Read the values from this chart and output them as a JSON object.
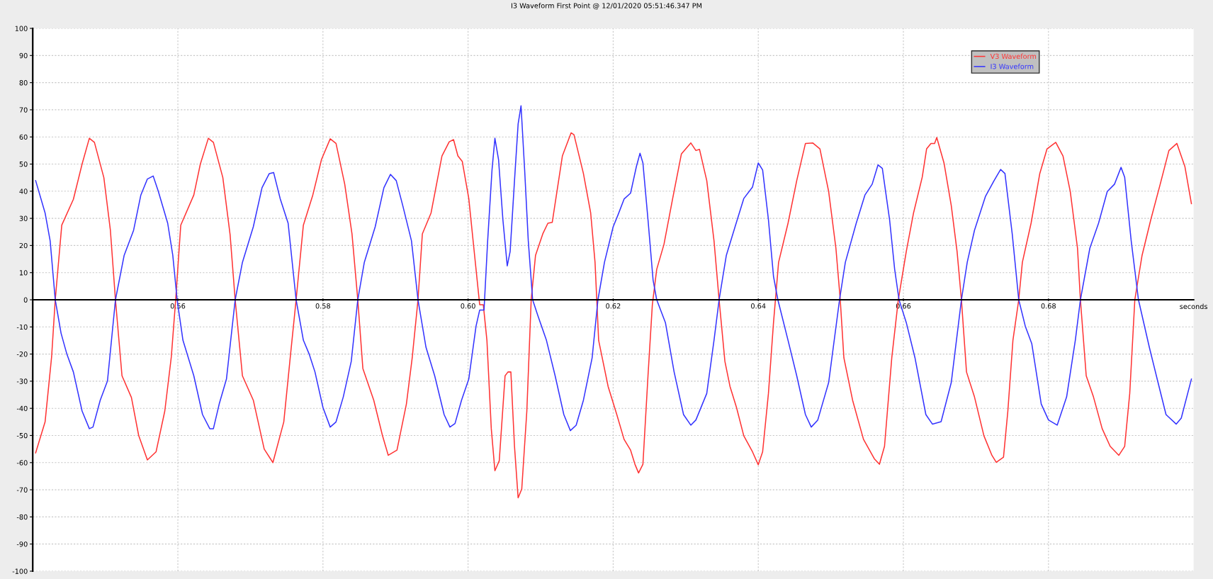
{
  "chart_data": {
    "type": "line",
    "title": "I3 Waveform First Point @ 12/01/2020 05:51:46.347 PM",
    "xlabel": "seconds",
    "xlim": [
      0.54,
      0.7
    ],
    "ylim": [
      -100,
      100
    ],
    "xticks": [
      0.56,
      0.58,
      {
        "value": 0.6,
        "label": "0.60"
      },
      0.62,
      0.64,
      0.66,
      0.68
    ],
    "yticks": [
      -100,
      -90,
      -80,
      -70,
      -60,
      -50,
      -40,
      -30,
      -20,
      -10,
      0,
      10,
      20,
      30,
      40,
      50,
      60,
      70,
      80,
      90,
      100
    ],
    "grid": true,
    "legend": "top right",
    "series": [
      {
        "name": "V3 Waveform",
        "color": "#ff3333",
        "x": [
          0.5404,
          0.5417,
          0.5426,
          0.5431,
          0.544,
          0.5456,
          0.5468,
          0.5478,
          0.5485,
          0.5498,
          0.5507,
          0.5514,
          0.5523,
          0.5536,
          0.5546,
          0.5558,
          0.557,
          0.5582,
          0.5591,
          0.5597,
          0.5604,
          0.5622,
          0.5631,
          0.5642,
          0.5649,
          0.5662,
          0.5672,
          0.5679,
          0.5689,
          0.5704,
          0.5719,
          0.5731,
          0.5746,
          0.5755,
          0.5763,
          0.5773,
          0.5786,
          0.5798,
          0.581,
          0.5818,
          0.583,
          0.584,
          0.5848,
          0.5855,
          0.587,
          0.5882,
          0.589,
          0.5902,
          0.5915,
          0.5923,
          0.5931,
          0.5937,
          0.5949,
          0.5964,
          0.5974,
          0.598,
          0.5986,
          0.5992,
          0.6001,
          0.6008,
          0.6016,
          0.6021,
          0.6026,
          0.6032,
          0.6037,
          0.6043,
          0.6051,
          0.6055,
          0.6059,
          0.6064,
          0.6069,
          0.6074,
          0.6081,
          0.6087,
          0.6093,
          0.6103,
          0.611,
          0.6116,
          0.613,
          0.6142,
          0.6146,
          0.6159,
          0.6169,
          0.6175,
          0.618,
          0.6193,
          0.6205,
          0.6215,
          0.6224,
          0.623,
          0.6235,
          0.6241,
          0.6248,
          0.6254,
          0.626,
          0.627,
          0.6282,
          0.6294,
          0.6307,
          0.6314,
          0.6319,
          0.6329,
          0.6339,
          0.6346,
          0.6354,
          0.6361,
          0.637,
          0.638,
          0.6392,
          0.64,
          0.6406,
          0.6414,
          0.6421,
          0.6428,
          0.6441,
          0.6453,
          0.6465,
          0.6475,
          0.6485,
          0.6497,
          0.6507,
          0.6513,
          0.6518,
          0.653,
          0.6545,
          0.656,
          0.6567,
          0.6574,
          0.6584,
          0.6593,
          0.6604,
          0.6614,
          0.6626,
          0.6632,
          0.6638,
          0.6643,
          0.6646,
          0.6656,
          0.6666,
          0.6674,
          0.668,
          0.6687,
          0.6698,
          0.6711,
          0.6722,
          0.6728,
          0.6738,
          0.6744,
          0.6751,
          0.6759,
          0.6764,
          0.6776,
          0.6788,
          0.6798,
          0.681,
          0.682,
          0.683,
          0.684,
          0.6844,
          0.6852,
          0.6862,
          0.6874,
          0.6885,
          0.6897,
          0.6905,
          0.6912,
          0.6919,
          0.6929,
          0.6941,
          0.6954,
          0.6966,
          0.6977,
          0.6988,
          0.6997
        ],
        "values": [
          -56.4,
          -45,
          -21,
          0,
          27.5,
          37,
          50,
          59.5,
          58,
          45,
          25.6,
          0,
          -28,
          -36,
          -50,
          -59,
          -56,
          -41,
          -21,
          0,
          27.5,
          38.6,
          50,
          59.5,
          58,
          45,
          24,
          0,
          -28,
          -37,
          -55,
          -60,
          -45,
          -21,
          0,
          27.5,
          38.6,
          51.7,
          59.3,
          57.6,
          42.6,
          24.3,
          0,
          -25.3,
          -37,
          -50,
          -57.3,
          -55.4,
          -38.4,
          -21.4,
          0,
          24.3,
          32,
          53,
          58.2,
          59,
          53,
          51,
          37.3,
          19,
          -1.8,
          -1.8,
          -15,
          -47.5,
          -63,
          -59.3,
          -28,
          -26.6,
          -26.6,
          -54,
          -73,
          -69.7,
          -41,
          0,
          16.4,
          24.3,
          28.2,
          28.5,
          53,
          61.5,
          60.8,
          46.5,
          32,
          13.8,
          -15,
          -31.9,
          -42.3,
          -51.4,
          -55.4,
          -60.6,
          -63.8,
          -60.6,
          -28,
          -1.8,
          11.2,
          20.4,
          37.3,
          53.7,
          57.8,
          55,
          55.4,
          43.9,
          21.7,
          0,
          -22.7,
          -31.9,
          -39.7,
          -50.1,
          -56,
          -60.8,
          -56,
          -34.5,
          -8.4,
          13.8,
          28.2,
          43.9,
          57.6,
          57.8,
          55.6,
          39.9,
          19,
          0,
          -21.4,
          -37,
          -51.4,
          -58.6,
          -60.6,
          -54,
          -21.4,
          0,
          17.8,
          32,
          45.2,
          55.6,
          57.6,
          57.6,
          59.8,
          50.4,
          34.7,
          17.8,
          0,
          -26.6,
          -35.8,
          -50.1,
          -57.3,
          -59.9,
          -58,
          -41,
          -14.9,
          0,
          13.8,
          28.2,
          46.5,
          55.6,
          58,
          53,
          39.9,
          19,
          0,
          -28,
          -35.8,
          -47.5,
          -54,
          -57.3,
          -54,
          -34.5,
          0,
          16.4,
          29.5,
          42.6,
          55,
          57.6,
          49.1,
          35.4
        ]
      },
      {
        "name": "I3 Waveform",
        "color": "#3333ff",
        "x": [
          0.5404,
          0.5417,
          0.5424,
          0.5431,
          0.5439,
          0.5447,
          0.5456,
          0.5468,
          0.5478,
          0.5483,
          0.5493,
          0.5503,
          0.5514,
          0.5526,
          0.5539,
          0.5549,
          0.5558,
          0.5566,
          0.5573,
          0.5586,
          0.5593,
          0.5599,
          0.5607,
          0.5622,
          0.5634,
          0.5644,
          0.5649,
          0.5657,
          0.5667,
          0.5679,
          0.5689,
          0.5704,
          0.5716,
          0.5726,
          0.5732,
          0.5741,
          0.5752,
          0.5763,
          0.5773,
          0.5781,
          0.5789,
          0.58,
          0.581,
          0.5818,
          0.5828,
          0.5839,
          0.5848,
          0.5857,
          0.5872,
          0.5884,
          0.5893,
          0.5901,
          0.591,
          0.5922,
          0.5931,
          0.5942,
          0.5954,
          0.5967,
          0.5975,
          0.5982,
          0.5991,
          0.6001,
          0.6011,
          0.6016,
          0.6022,
          0.6027,
          0.6033,
          0.6037,
          0.6042,
          0.6048,
          0.6054,
          0.6058,
          0.6064,
          0.6069,
          0.6073,
          0.6078,
          0.6083,
          0.6089,
          0.6096,
          0.6108,
          0.612,
          0.6132,
          0.6141,
          0.6149,
          0.6159,
          0.6171,
          0.6179,
          0.6188,
          0.62,
          0.6207,
          0.6215,
          0.6224,
          0.6232,
          0.6237,
          0.6241,
          0.6248,
          0.6255,
          0.626,
          0.6272,
          0.6284,
          0.6297,
          0.6307,
          0.6314,
          0.6329,
          0.6339,
          0.6346,
          0.6356,
          0.6368,
          0.638,
          0.6392,
          0.64,
          0.6406,
          0.6414,
          0.6421,
          0.6427,
          0.6441,
          0.6453,
          0.6465,
          0.6473,
          0.6482,
          0.6497,
          0.6512,
          0.652,
          0.6535,
          0.6547,
          0.6557,
          0.6565,
          0.6571,
          0.6581,
          0.6588,
          0.6594,
          0.6604,
          0.6616,
          0.6631,
          0.664,
          0.6652,
          0.6666,
          0.668,
          0.6688,
          0.6698,
          0.6713,
          0.6725,
          0.6734,
          0.674,
          0.675,
          0.6759,
          0.6768,
          0.6777,
          0.679,
          0.68,
          0.6812,
          0.6825,
          0.6837,
          0.6844,
          0.6857,
          0.6869,
          0.6881,
          0.6891,
          0.69,
          0.6905,
          0.6914,
          0.6924,
          0.6939,
          0.6951,
          0.6962,
          0.6976,
          0.6983,
          0.6997
        ],
        "values": [
          43.9,
          32,
          21.7,
          0,
          -12.3,
          -20,
          -26.6,
          -41,
          -47.5,
          -46.9,
          -37,
          -29.9,
          0,
          16.4,
          25.6,
          38.6,
          44.5,
          45.6,
          40,
          28.2,
          16.4,
          0,
          -14.9,
          -28,
          -42.3,
          -47.5,
          -47.5,
          -38.4,
          -29.2,
          0,
          13.8,
          26.9,
          41.3,
          46.5,
          46.9,
          37.3,
          28.2,
          0,
          -14.9,
          -20,
          -26.6,
          -39.7,
          -46.9,
          -45,
          -35.8,
          -22.7,
          0,
          13.8,
          26.9,
          41.3,
          46.2,
          43.9,
          34.7,
          21.7,
          0,
          -17.5,
          -28,
          -42.3,
          -46.9,
          -45.6,
          -37,
          -29.2,
          -9.7,
          -3.8,
          -3.8,
          21.7,
          47.8,
          59.5,
          51.7,
          29.5,
          12.5,
          17.8,
          43.9,
          64.8,
          71.5,
          47.8,
          21.7,
          0,
          -5.7,
          -14.9,
          -28,
          -42.3,
          -48.2,
          -46.2,
          -37,
          -21.4,
          0,
          13.8,
          26.9,
          31.5,
          37.1,
          39.3,
          49.1,
          54,
          50.4,
          29.5,
          7.3,
          0,
          -8.4,
          -26.6,
          -42.3,
          -46.2,
          -44.3,
          -34.5,
          -14.9,
          0,
          16.4,
          26.9,
          37.3,
          41.5,
          50.4,
          47.8,
          29.5,
          8.6,
          0,
          -14.9,
          -28,
          -42.3,
          -46.9,
          -44.3,
          -30.5,
          0,
          13.8,
          28.2,
          38.6,
          42.6,
          49.7,
          48.4,
          29.5,
          11.2,
          0,
          -8.4,
          -21.4,
          -42.3,
          -45.8,
          -44.9,
          -30.5,
          0,
          13.8,
          25.6,
          38,
          43.9,
          48,
          46.5,
          24.3,
          0,
          -9.7,
          -16.2,
          -38.4,
          -44.3,
          -46.2,
          -35.8,
          -14.9,
          0,
          19,
          28.2,
          39.9,
          42.6,
          48.8,
          45.2,
          21.7,
          0,
          -17.5,
          -30.5,
          -42.3,
          -45.8,
          -43.6,
          -29.2
        ]
      }
    ]
  }
}
